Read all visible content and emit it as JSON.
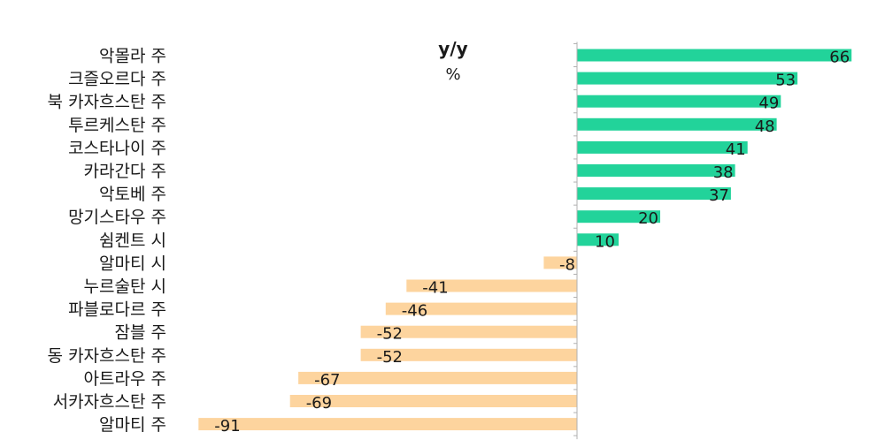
{
  "chart_data": {
    "type": "bar",
    "orientation": "horizontal",
    "title": "y/y",
    "unit": "%",
    "categories": [
      "악몰라 주",
      "크즐오르다 주",
      "북 카자흐스탄 주",
      "투르케스탄 주",
      "코스타나이 주",
      "카라간다 주",
      "악토베 주",
      "망기스타우 주",
      "쉼켄트 시",
      "알마티 시",
      "누르술탄 시",
      "파블로다르 주",
      "잠블 주",
      "동 카자흐스탄 주",
      "아트라우 주",
      "서카자흐스탄 주",
      "알마티 주"
    ],
    "values": [
      66,
      53,
      49,
      48,
      41,
      38,
      37,
      20,
      10,
      -8,
      -41,
      -46,
      -52,
      -52,
      -67,
      -69,
      -91
    ],
    "xlim": [
      -91,
      66
    ],
    "grid": false,
    "legend": "none"
  },
  "colors": {
    "positive": "#22d39a",
    "negative": "#fdd49e",
    "axis": "#b0b0b0",
    "text": "#1a1a1a"
  }
}
